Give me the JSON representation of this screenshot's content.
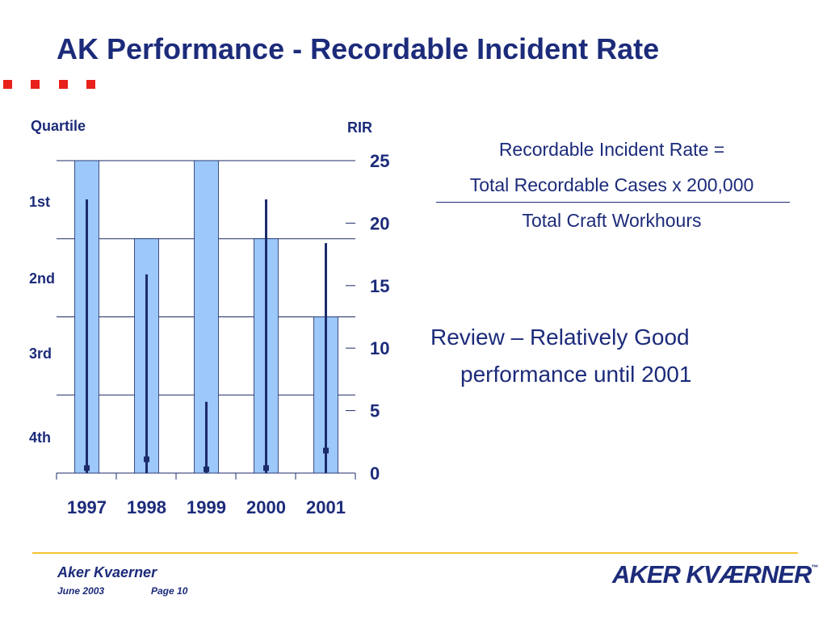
{
  "slide": {
    "title": "AK Performance - Recordable Incident Rate"
  },
  "chart_data": {
    "type": "bar",
    "left_axis_title": "Quartile",
    "right_axis_title": "RIR",
    "categories": [
      "1997",
      "1998",
      "1999",
      "2000",
      "2001"
    ],
    "quartile_labels": [
      "1st",
      "2nd",
      "3rd",
      "4th"
    ],
    "quartile_scale": [
      0,
      4
    ],
    "series": [
      {
        "values": [
          4,
          3,
          4,
          3,
          2
        ],
        "color": "#9cc8fa"
      }
    ],
    "range_high": [
      21.9,
      15.9,
      5.7,
      21.9,
      18.4
    ],
    "range_low": [
      0,
      0,
      0,
      0,
      0
    ],
    "point_values": [
      0.4,
      1.1,
      0.3,
      0.4,
      1.8
    ],
    "ylim": [
      0,
      25
    ],
    "yticks": [
      0,
      5,
      10,
      15,
      20,
      25
    ],
    "range_color": "#1c2b6a"
  },
  "formula": {
    "line1": "Recordable Incident Rate =",
    "numerator": "Total Recordable Cases x 200,000",
    "denominator": "Total Craft Workhours"
  },
  "review": {
    "line1": "Review – Relatively Good",
    "line2": "performance until 2001"
  },
  "footer": {
    "company": "Aker Kvaerner",
    "date": "June 2003",
    "page": "Page 10",
    "logo_text": "AKER KVÆRNER",
    "logo_mark": "™"
  },
  "colors": {
    "title": "#1c2b7a",
    "accent_dots": "#e8211a",
    "footer_rule": "#f5c232"
  }
}
